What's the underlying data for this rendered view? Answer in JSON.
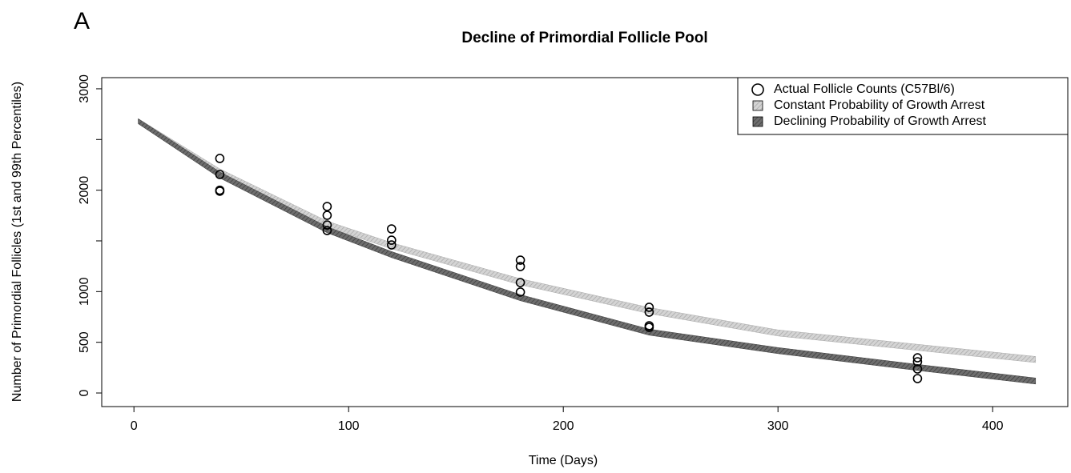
{
  "panel": "A",
  "chart_data": {
    "type": "scatter",
    "title": "Decline of Primordial Follicle Pool",
    "x_label": "Time (Days)",
    "y_label": "Number of Primordial Follicles (1st and 99th Percentiles)",
    "xlim": [
      -15,
      435
    ],
    "ylim": [
      -134,
      3110
    ],
    "xticks": [
      0,
      100,
      200,
      300,
      400
    ],
    "yticks": [
      0,
      500,
      1000,
      {
        "value": 1500,
        "label": null
      },
      2000,
      {
        "value": 2500,
        "label": null
      },
      3000
    ],
    "legend": "top-right",
    "bands": [
      {
        "name": "Constant Probability of Growth Arrest",
        "color": "#d4d4d4",
        "hatch": "#a8a8a8",
        "x": [
          2,
          40,
          90,
          120,
          180,
          240,
          300,
          365,
          420
        ],
        "lower": [
          2655,
          2150,
          1635,
          1422,
          1067,
          783,
          562,
          420,
          300
        ],
        "upper": [
          2705,
          2210,
          1695,
          1482,
          1127,
          843,
          622,
          480,
          360
        ]
      },
      {
        "name": "Declining Probability of Growth Arrest",
        "color": "#6e6e6e",
        "hatch": "#3c3c3c",
        "x": [
          2,
          40,
          90,
          120,
          180,
          240,
          300,
          365,
          420
        ],
        "lower": [
          2655,
          2120,
          1580,
          1335,
          910,
          570,
          388,
          222,
          88
        ],
        "upper": [
          2705,
          2180,
          1640,
          1395,
          970,
          630,
          448,
          282,
          148
        ]
      }
    ],
    "series": [
      {
        "name": "Actual Follicle Counts (C57Bl/6)",
        "x": [
          40,
          40,
          40,
          40,
          90,
          90,
          90,
          90,
          120,
          120,
          120,
          180,
          180,
          180,
          180,
          240,
          240,
          240,
          240,
          365,
          365,
          365,
          365
        ],
        "values": [
          2313,
          2155,
          2000,
          1990,
          1839,
          1752,
          1657,
          1602,
          1618,
          1507,
          1460,
          1310,
          1247,
          1089,
          995,
          845,
          797,
          663,
          647,
          347,
          308,
          237,
          142
        ]
      }
    ]
  }
}
